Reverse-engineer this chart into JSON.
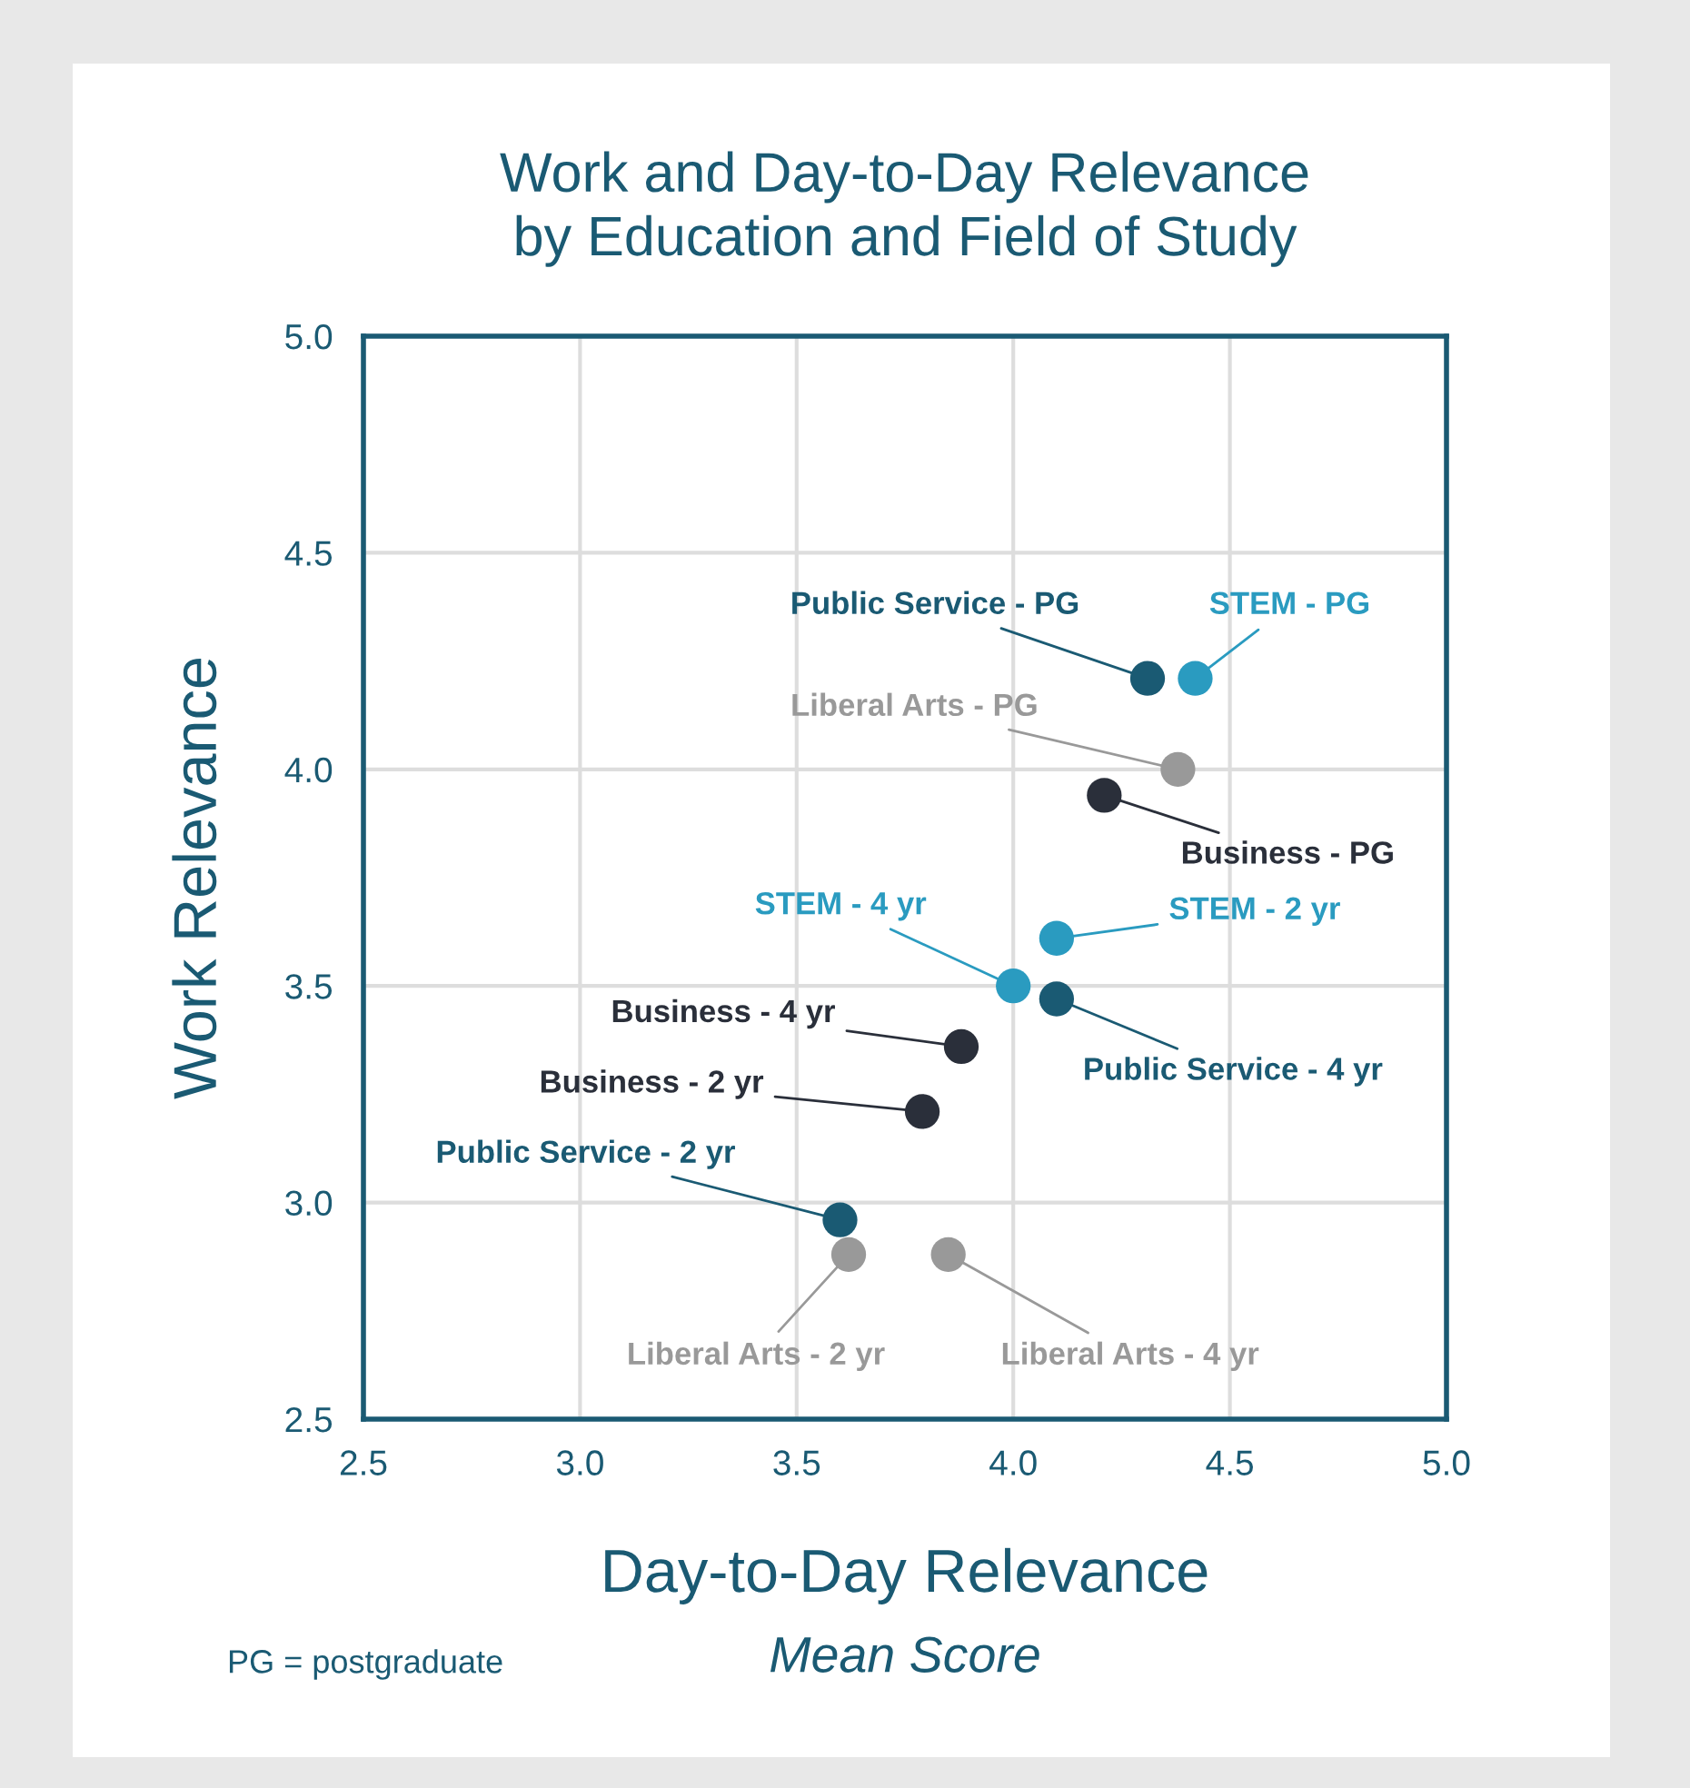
{
  "chart_data": {
    "type": "scatter",
    "title": "Work and Day-to-Day Relevance\nby Education and Field of Study",
    "xlabel": "Day-to-Day Relevance",
    "ylabel": "Work Relevance",
    "series": [
      {
        "color": "#2a9bc0",
        "x": [
          4.42,
          4.1,
          4.0
        ],
        "values": [
          4.21,
          3.61,
          3.5
        ]
      },
      {
        "color": "#1a5a73",
        "x": [
          4.31,
          4.1,
          3.6
        ],
        "values": [
          4.21,
          3.47,
          2.96
        ]
      },
      {
        "color": "#999999",
        "x": [
          4.38,
          3.62,
          3.85
        ],
        "values": [
          4.0,
          2.88,
          2.88
        ]
      },
      {
        "color": "#2a2f3a",
        "x": [
          4.21,
          3.88,
          3.79
        ],
        "values": [
          3.94,
          3.36,
          3.21
        ]
      }
    ],
    "annotations": [
      {
        "text": "Public Service - PG",
        "x": 4.31,
        "y": 4.21
      },
      {
        "text": "STEM - PG",
        "x": 4.42,
        "y": 4.21
      },
      {
        "text": "Liberal Arts - PG",
        "x": 4.38,
        "y": 4.0
      },
      {
        "text": "Business - PG",
        "x": 4.21,
        "y": 3.94
      },
      {
        "text": "STEM - 2 yr",
        "x": 4.1,
        "y": 3.61
      },
      {
        "text": "STEM - 4 yr",
        "x": 4.0,
        "y": 3.5
      },
      {
        "text": "Public Service - 4 yr",
        "x": 4.1,
        "y": 3.47
      },
      {
        "text": "Business - 4 yr",
        "x": 3.88,
        "y": 3.36
      },
      {
        "text": "Business - 2 yr",
        "x": 3.79,
        "y": 3.21
      },
      {
        "text": "Public Service - 2 yr",
        "x": 3.6,
        "y": 2.96
      },
      {
        "text": "Liberal Arts - 2 yr",
        "x": 3.62,
        "y": 2.88
      },
      {
        "text": "Liberal Arts - 4 yr",
        "x": 3.85,
        "y": 2.88
      },
      "PG = postgraduate",
      "Mean Score"
    ],
    "xlim": [
      2.5,
      5.0
    ],
    "ylim": [
      2.5,
      5.0
    ],
    "xticks": [
      {
        "value": 2.5,
        "label": "2.5"
      },
      {
        "value": 3,
        "label": "3.0"
      },
      {
        "value": 3.5,
        "label": "3.5"
      },
      {
        "value": 4,
        "label": "4.0"
      },
      {
        "value": 4.5,
        "label": "4.5"
      },
      {
        "value": 5,
        "label": "5.0"
      }
    ],
    "yticks": [
      {
        "value": 2.5,
        "label": "2.5"
      },
      {
        "value": 3,
        "label": "3.0"
      },
      {
        "value": 3.5,
        "label": "3.5"
      },
      {
        "value": 4,
        "label": "4.0"
      },
      {
        "value": 4.5,
        "label": "4.5"
      },
      {
        "value": 5,
        "label": "5.0"
      }
    ],
    "grid": true,
    "marker": "circle"
  }
}
